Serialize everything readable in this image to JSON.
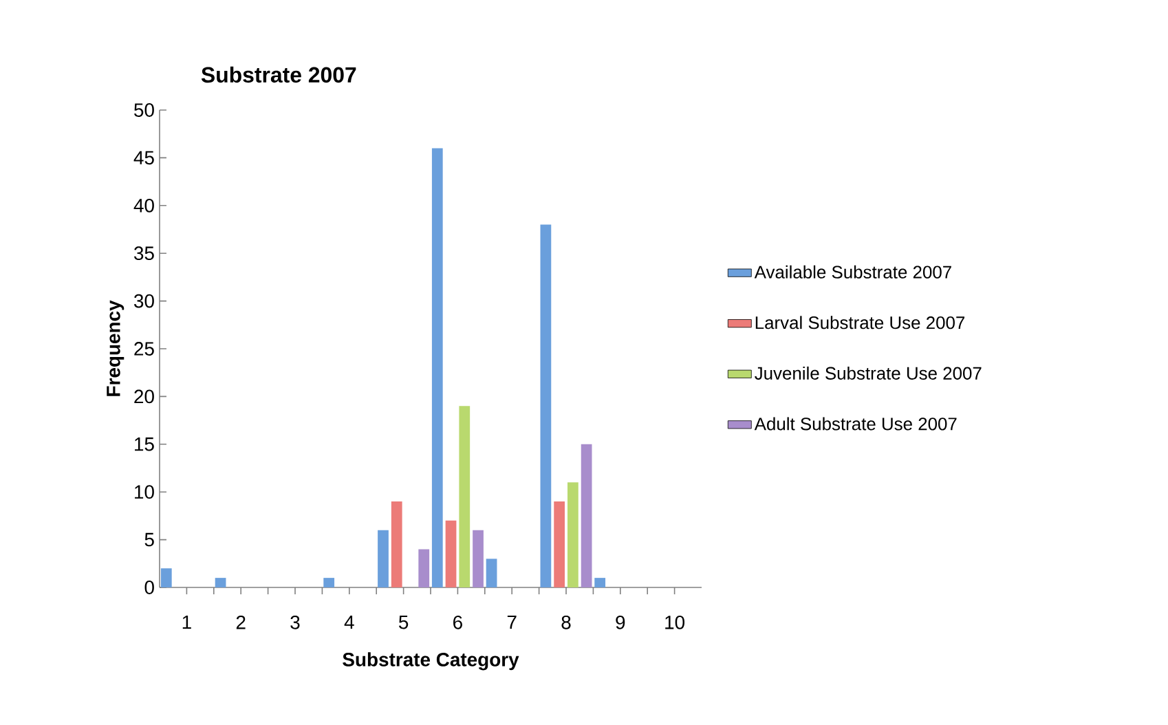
{
  "chart_data": {
    "type": "bar",
    "title": "Substrate 2007",
    "xlabel": "Substrate Category",
    "ylabel": "Frequency",
    "categories": [
      "1",
      "2",
      "3",
      "4",
      "5",
      "6",
      "7",
      "8",
      "9",
      "10"
    ],
    "series": [
      {
        "name": "Available Substrate 2007",
        "color": "#6a9fdc",
        "values": [
          2,
          1,
          0,
          1,
          6,
          46,
          3,
          38,
          1,
          0
        ]
      },
      {
        "name": "Larval Substrate Use 2007",
        "color": "#ec7b78",
        "values": [
          0,
          0,
          0,
          0,
          9,
          7,
          0,
          9,
          0,
          0
        ]
      },
      {
        "name": "Juvenile Substrate Use 2007",
        "color": "#b9d96e",
        "values": [
          0,
          0,
          0,
          0,
          0,
          19,
          0,
          11,
          0,
          0
        ]
      },
      {
        "name": "Adult Substrate Use 2007",
        "color": "#a88dcc",
        "values": [
          0,
          0,
          0,
          0,
          4,
          6,
          0,
          15,
          0,
          0
        ]
      }
    ],
    "ylim": [
      0,
      50
    ],
    "yticks": [
      0,
      5,
      10,
      15,
      20,
      25,
      30,
      35,
      40,
      45,
      50
    ],
    "grid": false,
    "legend": "right"
  }
}
